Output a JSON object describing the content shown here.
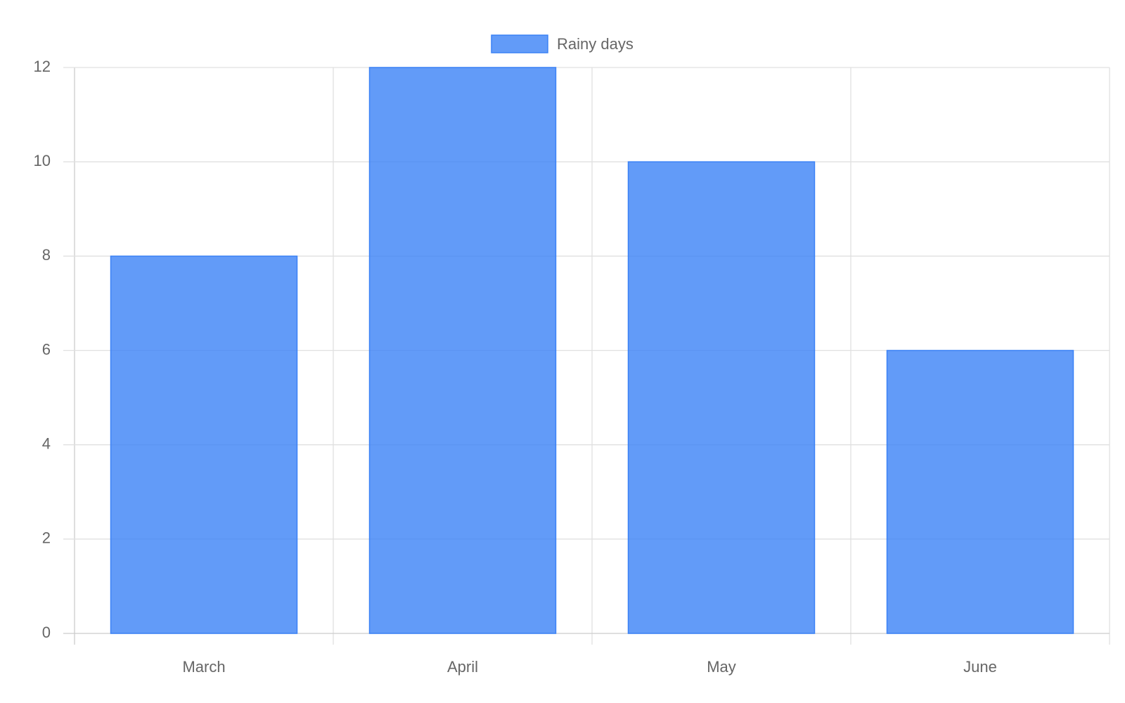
{
  "chart_data": {
    "type": "bar",
    "categories": [
      "March",
      "April",
      "May",
      "June"
    ],
    "series": [
      {
        "name": "Rainy days",
        "color": "#3b82f6",
        "values": [
          8,
          12,
          10,
          6
        ]
      }
    ],
    "ylim": [
      0,
      12
    ],
    "yticks": [
      0,
      2,
      4,
      6,
      8,
      10,
      12
    ],
    "grid": true,
    "legend": "top"
  }
}
